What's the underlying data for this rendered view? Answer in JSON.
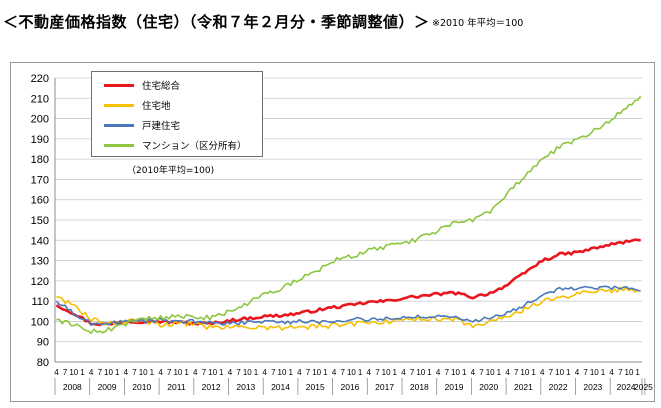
{
  "page": {
    "title": "＜不動産価格指数（住宅）（令和７年２月分・季節調整値）＞",
    "note": "※2010 年平均＝100"
  },
  "chart_data": {
    "type": "line",
    "base_note": "（2010年平均=100)",
    "ylim": [
      80,
      220
    ],
    "y_ticks": [
      "80",
      "90",
      "100",
      "110",
      "120",
      "130",
      "140",
      "150",
      "160",
      "170",
      "180",
      "190",
      "200",
      "210",
      "220"
    ],
    "month_tick_labels": [
      "4",
      "7",
      "10",
      "1"
    ],
    "years": [
      "2008",
      "2009",
      "2010",
      "2011",
      "2012",
      "2013",
      "2014",
      "2015",
      "2016",
      "2017",
      "2018",
      "2019",
      "2020",
      "2021",
      "2022",
      "2023",
      "2024",
      "2025"
    ],
    "x_start": "2008-04",
    "x_end": "2025-02",
    "grid": "horizontal",
    "legend_position": "top-left",
    "series": [
      {
        "name": "住宅総合",
        "color": "#e8171e",
        "points": [
          [
            "2008-04",
            108
          ],
          [
            "2008-10",
            104
          ],
          [
            "2009-04",
            99
          ],
          [
            "2009-10",
            98.5
          ],
          [
            "2010-04",
            100
          ],
          [
            "2010-10",
            100
          ],
          [
            "2011-04",
            100
          ],
          [
            "2011-10",
            99.5
          ],
          [
            "2012-04",
            99
          ],
          [
            "2012-10",
            99
          ],
          [
            "2013-04",
            100.5
          ],
          [
            "2013-10",
            101.5
          ],
          [
            "2014-04",
            102.5
          ],
          [
            "2014-10",
            103
          ],
          [
            "2015-04",
            104
          ],
          [
            "2015-10",
            105.5
          ],
          [
            "2016-04",
            107
          ],
          [
            "2016-10",
            108
          ],
          [
            "2017-04",
            109.5
          ],
          [
            "2017-10",
            110
          ],
          [
            "2018-04",
            111.5
          ],
          [
            "2018-10",
            112.5
          ],
          [
            "2019-04",
            113.5
          ],
          [
            "2019-10",
            114
          ],
          [
            "2020-04",
            112
          ],
          [
            "2020-10",
            114
          ],
          [
            "2021-04",
            118
          ],
          [
            "2021-10",
            124
          ],
          [
            "2022-04",
            130
          ],
          [
            "2022-10",
            133
          ],
          [
            "2023-04",
            134
          ],
          [
            "2023-10",
            136
          ],
          [
            "2024-04",
            138
          ],
          [
            "2024-10",
            139.5
          ],
          [
            "2025-02",
            140
          ]
        ]
      },
      {
        "name": "住宅地",
        "color": "#f5c000",
        "points": [
          [
            "2008-04",
            112
          ],
          [
            "2008-10",
            108
          ],
          [
            "2009-04",
            101
          ],
          [
            "2009-10",
            99
          ],
          [
            "2010-04",
            99.5
          ],
          [
            "2010-10",
            100.5
          ],
          [
            "2011-04",
            98.5
          ],
          [
            "2011-10",
            99
          ],
          [
            "2012-04",
            98.5
          ],
          [
            "2012-10",
            97
          ],
          [
            "2013-04",
            97.5
          ],
          [
            "2013-10",
            97
          ],
          [
            "2014-04",
            96.5
          ],
          [
            "2014-10",
            97
          ],
          [
            "2015-04",
            97
          ],
          [
            "2015-10",
            97.5
          ],
          [
            "2016-04",
            98
          ],
          [
            "2016-10",
            99
          ],
          [
            "2017-04",
            99
          ],
          [
            "2017-10",
            100
          ],
          [
            "2018-04",
            100.5
          ],
          [
            "2018-10",
            101
          ],
          [
            "2019-04",
            101
          ],
          [
            "2019-10",
            101
          ],
          [
            "2020-04",
            98
          ],
          [
            "2020-10",
            100.5
          ],
          [
            "2021-04",
            103
          ],
          [
            "2021-10",
            106
          ],
          [
            "2022-04",
            110
          ],
          [
            "2022-10",
            112
          ],
          [
            "2023-04",
            113
          ],
          [
            "2023-10",
            115
          ],
          [
            "2024-04",
            115.5
          ],
          [
            "2024-10",
            116
          ],
          [
            "2025-02",
            115
          ]
        ]
      },
      {
        "name": "戸建住宅",
        "color": "#4a78b8",
        "points": [
          [
            "2008-04",
            110
          ],
          [
            "2008-10",
            104
          ],
          [
            "2009-04",
            99
          ],
          [
            "2009-10",
            99
          ],
          [
            "2010-04",
            100
          ],
          [
            "2010-10",
            100
          ],
          [
            "2011-04",
            100.5
          ],
          [
            "2011-10",
            100
          ],
          [
            "2012-04",
            100
          ],
          [
            "2012-10",
            99
          ],
          [
            "2013-04",
            99
          ],
          [
            "2013-10",
            99.5
          ],
          [
            "2014-04",
            99.5
          ],
          [
            "2014-10",
            99.5
          ],
          [
            "2015-04",
            100
          ],
          [
            "2015-10",
            100
          ],
          [
            "2016-04",
            100.5
          ],
          [
            "2016-10",
            101
          ],
          [
            "2017-04",
            101
          ],
          [
            "2017-10",
            101.5
          ],
          [
            "2018-04",
            102
          ],
          [
            "2018-10",
            102.5
          ],
          [
            "2019-04",
            102.5
          ],
          [
            "2019-10",
            102
          ],
          [
            "2020-04",
            100.5
          ],
          [
            "2020-10",
            101.5
          ],
          [
            "2021-04",
            104
          ],
          [
            "2021-10",
            108
          ],
          [
            "2022-04",
            113
          ],
          [
            "2022-10",
            116
          ],
          [
            "2023-04",
            116.5
          ],
          [
            "2023-10",
            116
          ],
          [
            "2024-04",
            116.5
          ],
          [
            "2024-10",
            117
          ],
          [
            "2025-02",
            115
          ]
        ]
      },
      {
        "name": "マンション（区分所有）",
        "color": "#8cc63f",
        "points": [
          [
            "2008-04",
            101
          ],
          [
            "2008-10",
            98
          ],
          [
            "2009-04",
            95
          ],
          [
            "2009-10",
            96
          ],
          [
            "2010-04",
            99
          ],
          [
            "2010-10",
            101
          ],
          [
            "2011-04",
            102
          ],
          [
            "2011-10",
            102.5
          ],
          [
            "2012-04",
            102
          ],
          [
            "2012-10",
            102
          ],
          [
            "2013-04",
            105
          ],
          [
            "2013-10",
            109
          ],
          [
            "2014-04",
            113
          ],
          [
            "2014-10",
            116
          ],
          [
            "2015-04",
            121
          ],
          [
            "2015-10",
            125
          ],
          [
            "2016-04",
            130
          ],
          [
            "2016-10",
            132
          ],
          [
            "2017-04",
            135
          ],
          [
            "2017-10",
            137
          ],
          [
            "2018-04",
            138
          ],
          [
            "2018-10",
            141
          ],
          [
            "2019-04",
            145
          ],
          [
            "2019-10",
            149
          ],
          [
            "2020-04",
            150
          ],
          [
            "2020-10",
            154
          ],
          [
            "2021-04",
            163
          ],
          [
            "2021-10",
            172
          ],
          [
            "2022-04",
            180
          ],
          [
            "2022-10",
            186
          ],
          [
            "2023-04",
            190
          ],
          [
            "2023-10",
            194
          ],
          [
            "2024-04",
            200
          ],
          [
            "2024-10",
            206
          ],
          [
            "2025-02",
            211
          ]
        ]
      }
    ]
  }
}
